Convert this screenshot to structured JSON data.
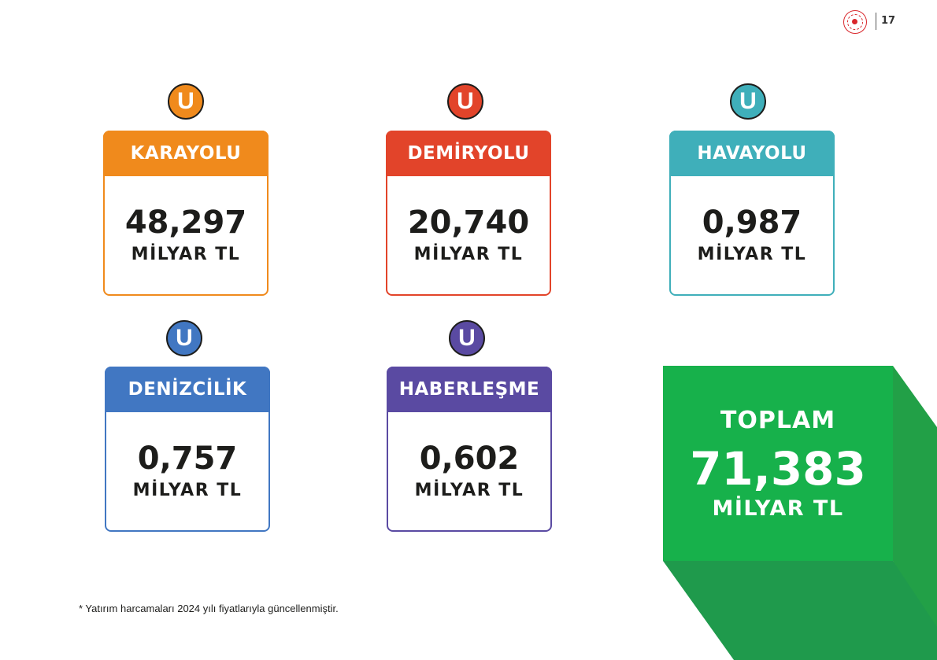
{
  "header": {
    "page_number": "17"
  },
  "colors": {
    "karayolu": "#f08a1c",
    "demiryolu": "#e2442a",
    "havayolu": "#3fafba",
    "denizcilik": "#4177c2",
    "haberlesme": "#5a4aa2",
    "total_green": "#17b14b",
    "total_green_dark": "#1f9a4c",
    "total_green_side": "#22a047"
  },
  "cards": [
    {
      "badge": "U",
      "title": "KARAYOLU",
      "value": "48,297",
      "unit": "MİLYAR TL"
    },
    {
      "badge": "U",
      "title": "DEMİRYOLU",
      "value": "20,740",
      "unit": "MİLYAR TL"
    },
    {
      "badge": "U",
      "title": "HAVAYOLU",
      "value": "0,987",
      "unit": "MİLYAR TL"
    },
    {
      "badge": "U",
      "title": "DENİZCİLİK",
      "value": "0,757",
      "unit": "MİLYAR TL"
    },
    {
      "badge": "U",
      "title": "HABERLEŞME",
      "value": "0,602",
      "unit": "MİLYAR TL"
    }
  ],
  "total": {
    "label": "TOPLAM",
    "value": "71,383",
    "unit": "MİLYAR TL"
  },
  "footnote": "* Yatırım harcamaları 2024 yılı fiyatlarıyla güncellenmiştir."
}
